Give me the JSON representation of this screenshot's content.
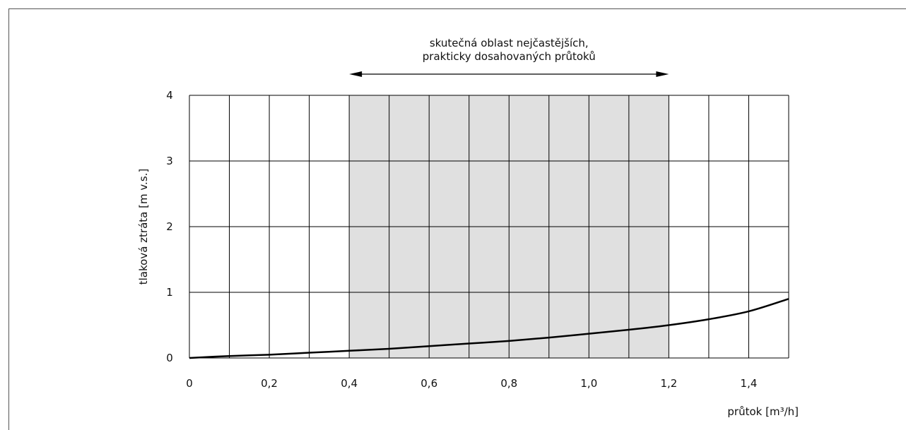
{
  "chart_data": {
    "type": "line",
    "xlabel": "průtok [m³/h]",
    "ylabel": "tlaková ztráta [m v.s.]",
    "xlim": [
      0,
      1.5
    ],
    "ylim": [
      0,
      4
    ],
    "x_ticks": [
      "0",
      "0,2",
      "0,4",
      "0,6",
      "0,8",
      "1,0",
      "1,2",
      "1,4"
    ],
    "x_tick_values": [
      0,
      0.2,
      0.4,
      0.6,
      0.8,
      1.0,
      1.2,
      1.4
    ],
    "y_ticks": [
      "0",
      "1",
      "2",
      "3",
      "4"
    ],
    "y_tick_values": [
      0,
      1,
      2,
      3,
      4
    ],
    "x_grid_step": 0.1,
    "y_grid_step": 1,
    "grid": true,
    "shaded_region": {
      "x_from": 0.4,
      "x_to": 1.2,
      "color": "#e0e0e0"
    },
    "annotation": {
      "lines": [
        "skutečná oblast nejčastějších,",
        "prakticky dosahovaných průtoků"
      ],
      "arrow_from": 0.4,
      "arrow_to": 1.2
    },
    "series": [
      {
        "x": [
          0,
          0.1,
          0.2,
          0.3,
          0.4,
          0.5,
          0.6,
          0.7,
          0.8,
          0.9,
          1.0,
          1.1,
          1.2,
          1.3,
          1.4,
          1.5
        ],
        "y": [
          0.0,
          0.03,
          0.05,
          0.08,
          0.11,
          0.14,
          0.18,
          0.22,
          0.26,
          0.31,
          0.37,
          0.43,
          0.5,
          0.59,
          0.71,
          0.9
        ],
        "color": "#000000"
      }
    ]
  }
}
